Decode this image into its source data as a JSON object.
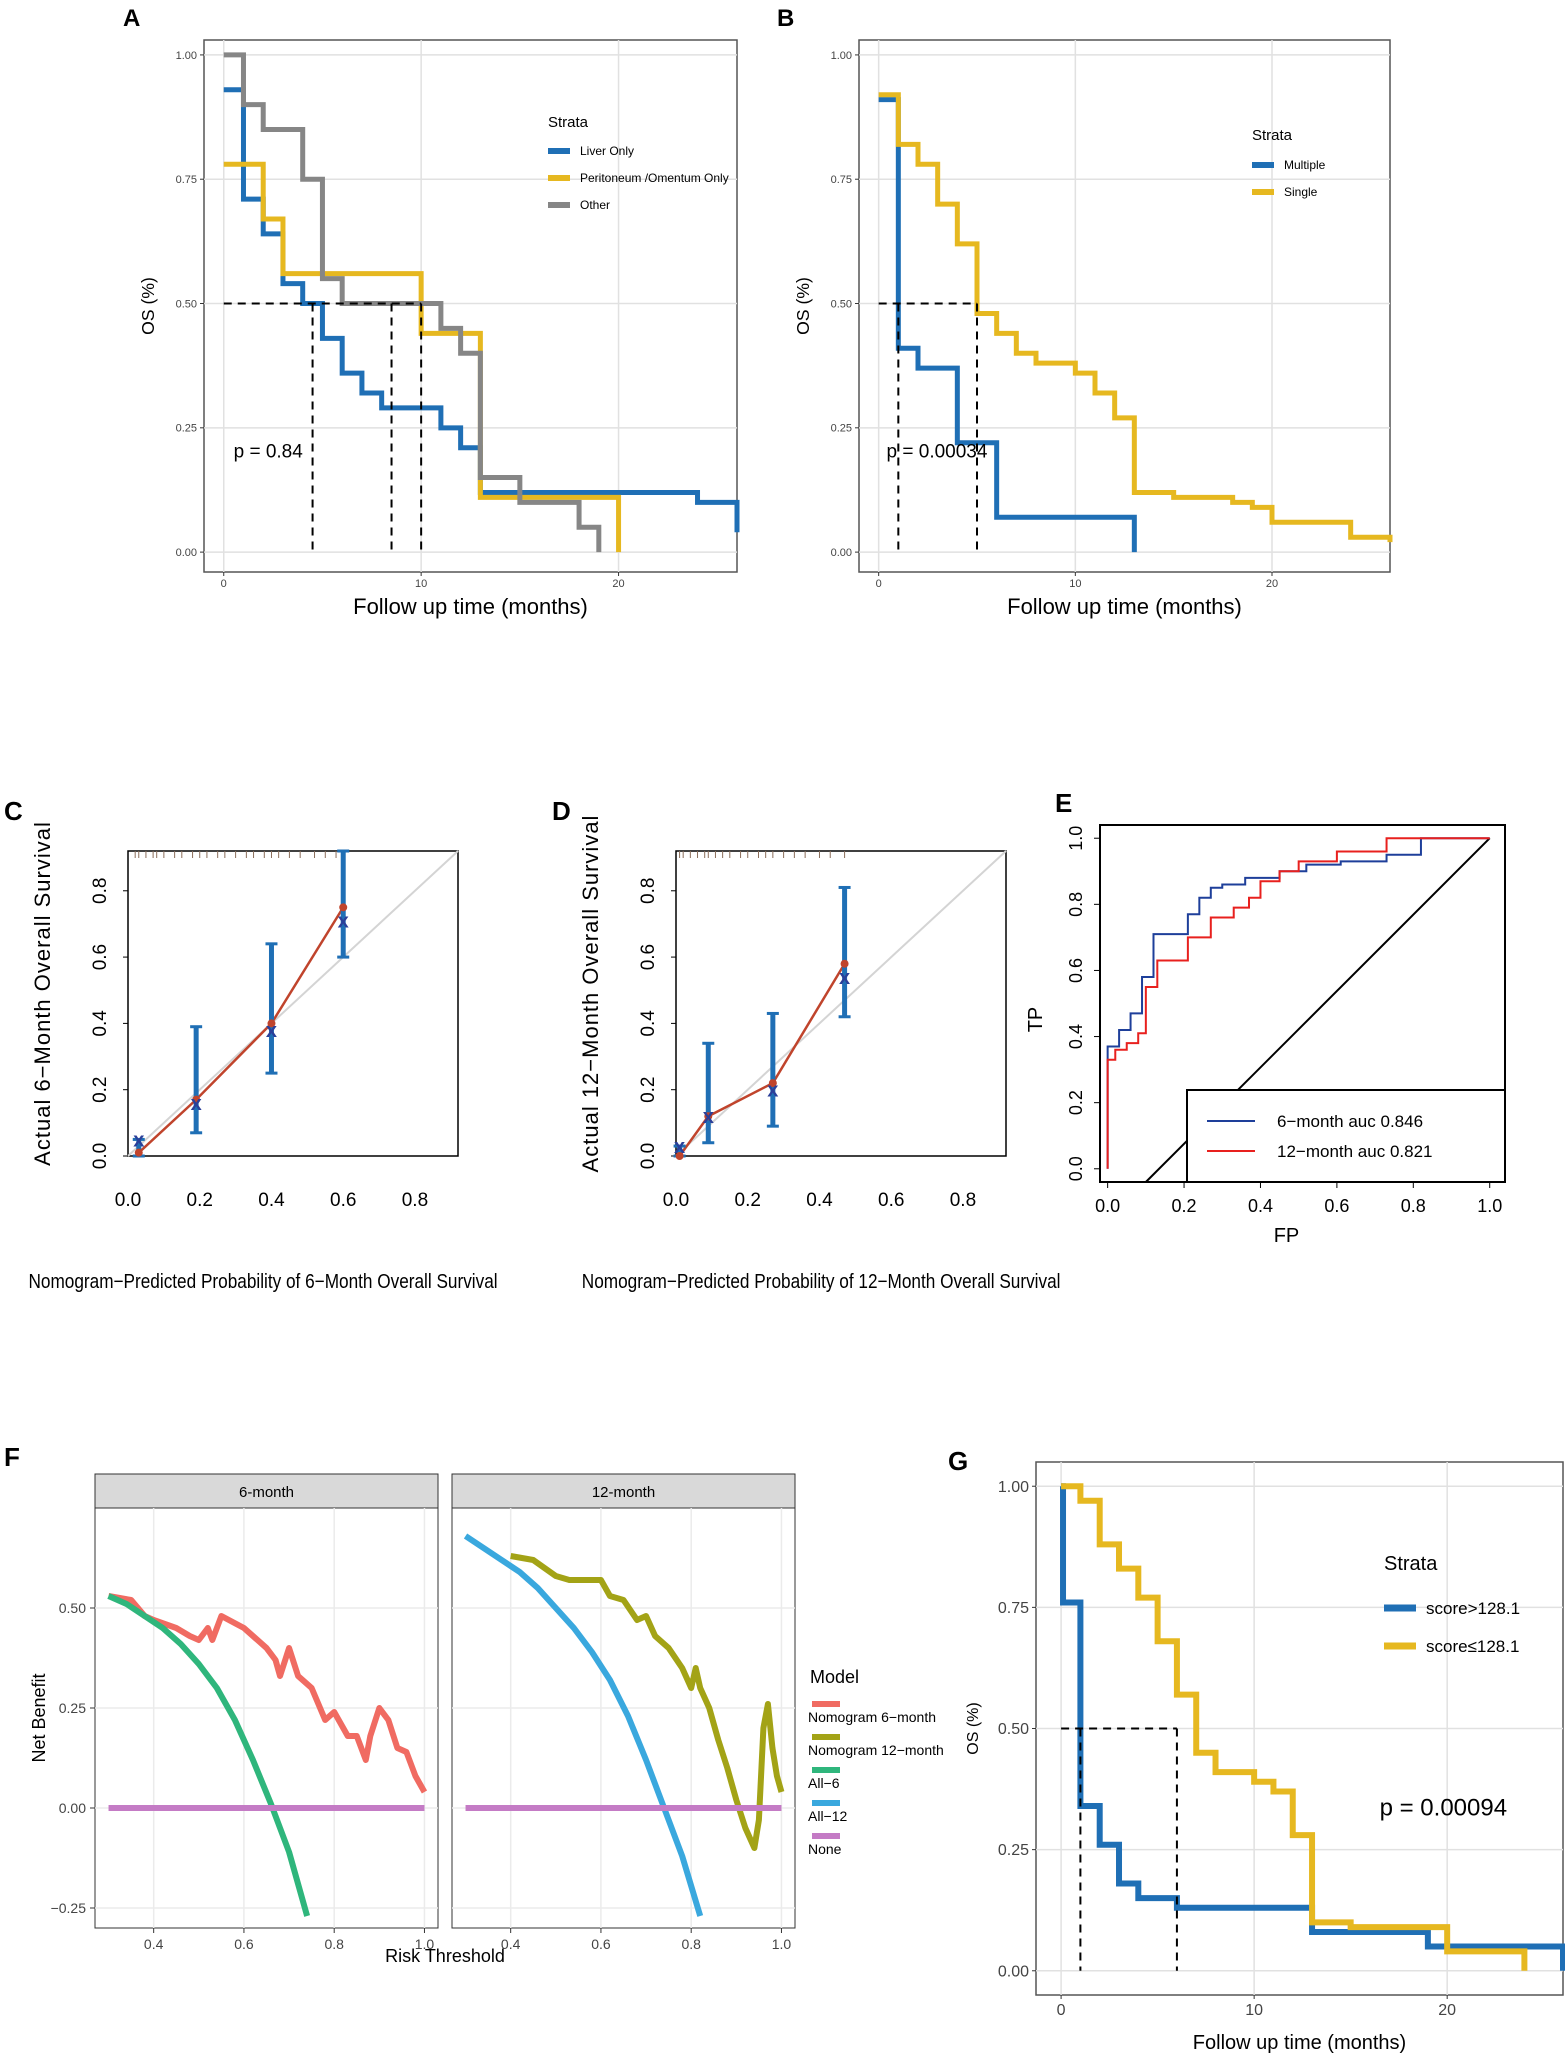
{
  "colors": {
    "blue": "#1f6fb5",
    "gold": "#e6b820",
    "gray": "#868686",
    "navy": "#1e3f9a",
    "red": "#e8201e",
    "salmon": "#f06b62",
    "olive": "#a3a316",
    "green": "#2fb67c",
    "sky": "#3aa8de",
    "violet": "#c47bc5",
    "calib_err": "#1f6fb5",
    "calib_line": "#c0442c"
  },
  "chart_data": [
    {
      "panel": "A",
      "type": "line",
      "xlabel": "Follow up time (months)",
      "ylabel": "OS (%)",
      "xlim": [
        -1,
        26
      ],
      "ylim": [
        -0.04,
        1.03
      ],
      "x_ticks": [
        0,
        10,
        20
      ],
      "x_tick_labels": [
        "0",
        "10",
        "20"
      ],
      "y_ticks": [
        0,
        0.25,
        0.5,
        0.75,
        1
      ],
      "y_tick_labels": [
        "0.00",
        "0.25",
        "0.50",
        "0.75",
        "1.00"
      ],
      "legend_title": "Strata",
      "legend_position": "top-right",
      "legend": [
        "Liver Only",
        "Peritoneum /Omentum Only",
        "Other"
      ],
      "annotation": "p = 0.84",
      "median_line_y": 0.5,
      "median_x": [
        4.5,
        8.5,
        10
      ],
      "series": [
        {
          "name": "Liver Only",
          "color": "blue",
          "x": [
            0,
            1,
            2,
            3,
            4,
            5,
            6,
            7,
            8,
            11,
            12,
            13,
            20,
            24,
            26
          ],
          "y": [
            0.93,
            0.71,
            0.64,
            0.54,
            0.5,
            0.43,
            0.36,
            0.32,
            0.29,
            0.25,
            0.21,
            0.12,
            0.12,
            0.1,
            0.04
          ]
        },
        {
          "name": "Peritoneum /Omentum Only",
          "color": "gold",
          "x": [
            0,
            2,
            3,
            10,
            13,
            18,
            20
          ],
          "y": [
            0.78,
            0.67,
            0.56,
            0.44,
            0.11,
            0.11,
            0
          ]
        },
        {
          "name": "Other",
          "color": "gray",
          "x": [
            0,
            1,
            2,
            4,
            5,
            6,
            11,
            12,
            13,
            15,
            18,
            19
          ],
          "y": [
            1.0,
            0.9,
            0.85,
            0.75,
            0.55,
            0.5,
            0.45,
            0.4,
            0.15,
            0.1,
            0.05,
            0
          ]
        }
      ]
    },
    {
      "panel": "B",
      "type": "line",
      "xlabel": "Follow up time (months)",
      "ylabel": "OS (%)",
      "xlim": [
        -1,
        26
      ],
      "ylim": [
        -0.04,
        1.03
      ],
      "x_ticks": [
        0,
        10,
        20
      ],
      "x_tick_labels": [
        "0",
        "10",
        "20"
      ],
      "y_ticks": [
        0,
        0.25,
        0.5,
        0.75,
        1
      ],
      "y_tick_labels": [
        "0.00",
        "0.25",
        "0.50",
        "0.75",
        "1.00"
      ],
      "legend_title": "Strata",
      "legend_position": "top-right",
      "legend": [
        "Multiple",
        "Single"
      ],
      "annotation": "p = 0.00034",
      "median_line_y": 0.5,
      "median_x": [
        1,
        5
      ],
      "series": [
        {
          "name": "Multiple",
          "color": "blue",
          "x": [
            0,
            1,
            2,
            4,
            6,
            13
          ],
          "y": [
            0.91,
            0.41,
            0.37,
            0.22,
            0.07,
            0
          ]
        },
        {
          "name": "Single",
          "color": "gold",
          "x": [
            0,
            1,
            2,
            3,
            4,
            5,
            6,
            7,
            8,
            10,
            11,
            12,
            13,
            15,
            18,
            19,
            20,
            22,
            24,
            26
          ],
          "y": [
            0.92,
            0.82,
            0.78,
            0.7,
            0.62,
            0.48,
            0.44,
            0.4,
            0.38,
            0.36,
            0.32,
            0.27,
            0.12,
            0.11,
            0.1,
            0.09,
            0.06,
            0.06,
            0.03,
            0.02
          ]
        }
      ]
    },
    {
      "panel": "C",
      "type": "scatter",
      "xlabel": "Nomogram−Predicted Probability of 6−Month Overall Survival",
      "ylabel": "Actual 6−Month Overall Survival",
      "xlim": [
        0,
        0.92
      ],
      "ylim": [
        0,
        0.92
      ],
      "x_ticks": [
        0,
        0.2,
        0.4,
        0.6,
        0.8
      ],
      "x_tick_labels": [
        "0.0",
        "0.2",
        "0.4",
        "0.6",
        "0.8"
      ],
      "y_ticks": [
        0,
        0.2,
        0.4,
        0.6,
        0.8
      ],
      "y_tick_labels": [
        "0.0",
        "0.2",
        "0.4",
        "0.6",
        "0.8"
      ],
      "points": [
        {
          "x": 0.03,
          "y": 0.01,
          "corrected": 0.05,
          "lo": 0.0,
          "hi": 0.05
        },
        {
          "x": 0.19,
          "y": 0.17,
          "corrected": 0.16,
          "lo": 0.07,
          "hi": 0.39
        },
        {
          "x": 0.4,
          "y": 0.4,
          "corrected": 0.38,
          "lo": 0.25,
          "hi": 0.64
        },
        {
          "x": 0.6,
          "y": 0.75,
          "corrected": 0.71,
          "lo": 0.6,
          "hi": 0.92
        }
      ],
      "rug": [
        0.02,
        0.03,
        0.05,
        0.07,
        0.08,
        0.1,
        0.13,
        0.15,
        0.18,
        0.2,
        0.22,
        0.25,
        0.27,
        0.3,
        0.33,
        0.35,
        0.38,
        0.4,
        0.42,
        0.45,
        0.48,
        0.52,
        0.55,
        0.58,
        0.6
      ]
    },
    {
      "panel": "D",
      "type": "scatter",
      "xlabel": "Nomogram−Predicted Probability of 12−Month Overall Survival",
      "ylabel": "Actual 12−Month Overall Survival",
      "xlim": [
        0,
        0.92
      ],
      "ylim": [
        0,
        0.92
      ],
      "x_ticks": [
        0,
        0.2,
        0.4,
        0.6,
        0.8
      ],
      "x_tick_labels": [
        "0.0",
        "0.2",
        "0.4",
        "0.6",
        "0.8"
      ],
      "y_ticks": [
        0,
        0.2,
        0.4,
        0.6,
        0.8
      ],
      "y_tick_labels": [
        "0.0",
        "0.2",
        "0.4",
        "0.6",
        "0.8"
      ],
      "points": [
        {
          "x": 0.01,
          "y": 0.0,
          "corrected": 0.03,
          "lo": 0.0,
          "hi": 0.03
        },
        {
          "x": 0.09,
          "y": 0.12,
          "corrected": 0.12,
          "lo": 0.04,
          "hi": 0.34
        },
        {
          "x": 0.27,
          "y": 0.22,
          "corrected": 0.2,
          "lo": 0.09,
          "hi": 0.43
        },
        {
          "x": 0.47,
          "y": 0.58,
          "corrected": 0.54,
          "lo": 0.42,
          "hi": 0.81
        }
      ],
      "rug": [
        0.01,
        0.02,
        0.04,
        0.06,
        0.08,
        0.09,
        0.11,
        0.13,
        0.15,
        0.18,
        0.2,
        0.23,
        0.25,
        0.27,
        0.3,
        0.33,
        0.36,
        0.4,
        0.43,
        0.47
      ]
    },
    {
      "panel": "E",
      "type": "line",
      "xlabel": "FP",
      "ylabel": "TP",
      "xlim": [
        -0.02,
        1.04
      ],
      "ylim": [
        -0.04,
        1.04
      ],
      "x_ticks": [
        0,
        0.2,
        0.4,
        0.6,
        0.8,
        1.0
      ],
      "x_tick_labels": [
        "0.0",
        "0.2",
        "0.4",
        "0.6",
        "0.8",
        "1.0"
      ],
      "y_ticks": [
        0,
        0.2,
        0.4,
        0.6,
        0.8,
        1.0
      ],
      "y_tick_labels": [
        "0.0",
        "0.2",
        "0.4",
        "0.6",
        "0.8",
        "1.0"
      ],
      "legend_position": "bottom-right",
      "legend": [
        "6−month auc 0.846",
        "12−month auc 0.821"
      ],
      "series": [
        {
          "name": "6−month auc 0.846",
          "color": "navy",
          "x": [
            0,
            0,
            0.03,
            0.03,
            0.06,
            0.06,
            0.09,
            0.09,
            0.12,
            0.12,
            0.15,
            0.15,
            0.21,
            0.21,
            0.24,
            0.24,
            0.27,
            0.27,
            0.3,
            0.3,
            0.36,
            0.36,
            0.45,
            0.45,
            0.52,
            0.52,
            0.61,
            0.61,
            0.73,
            0.73,
            0.82,
            0.82,
            1.0
          ],
          "y": [
            0,
            0.37,
            0.37,
            0.42,
            0.42,
            0.47,
            0.47,
            0.58,
            0.58,
            0.71,
            0.71,
            0.71,
            0.71,
            0.77,
            0.77,
            0.82,
            0.82,
            0.85,
            0.85,
            0.86,
            0.86,
            0.88,
            0.88,
            0.9,
            0.9,
            0.92,
            0.92,
            0.93,
            0.93,
            0.95,
            0.95,
            1.0,
            1.0
          ]
        },
        {
          "name": "12−month auc 0.821",
          "color": "red",
          "x": [
            0,
            0,
            0.02,
            0.02,
            0.05,
            0.05,
            0.08,
            0.08,
            0.1,
            0.1,
            0.13,
            0.13,
            0.21,
            0.21,
            0.27,
            0.27,
            0.33,
            0.33,
            0.37,
            0.37,
            0.4,
            0.4,
            0.45,
            0.45,
            0.5,
            0.5,
            0.6,
            0.6,
            0.73,
            0.73,
            1.0
          ],
          "y": [
            0,
            0.33,
            0.33,
            0.36,
            0.36,
            0.38,
            0.38,
            0.41,
            0.41,
            0.55,
            0.55,
            0.63,
            0.63,
            0.7,
            0.7,
            0.76,
            0.76,
            0.79,
            0.79,
            0.82,
            0.82,
            0.87,
            0.87,
            0.9,
            0.9,
            0.93,
            0.93,
            0.96,
            0.96,
            1.0,
            1.0
          ]
        }
      ]
    },
    {
      "panel": "F",
      "type": "line",
      "xlabel": "Risk Threshold",
      "ylabel": "Net Benefit",
      "xlim": [
        0.27,
        1.03
      ],
      "ylim": [
        -0.3,
        0.75
      ],
      "x_ticks": [
        0.4,
        0.6,
        0.8,
        1.0
      ],
      "x_tick_labels": [
        "0.4",
        "0.6",
        "0.8",
        "1.0"
      ],
      "y_ticks": [
        -0.25,
        0,
        0.25,
        0.5
      ],
      "y_tick_labels": [
        "−0.25",
        "0.00",
        "0.25",
        "0.50"
      ],
      "facets": [
        "6-month",
        "12-month"
      ],
      "legend_title": "Model",
      "legend_position": "right",
      "legend": [
        "Nomogram 6−month",
        "Nomogram 12−month",
        "All−6",
        "All−12",
        "None"
      ],
      "series": [
        {
          "name": "Nomogram 6−month",
          "facet": 0,
          "color": "salmon",
          "x": [
            0.3,
            0.35,
            0.38,
            0.4,
            0.45,
            0.48,
            0.5,
            0.52,
            0.53,
            0.55,
            0.6,
            0.65,
            0.67,
            0.68,
            0.7,
            0.72,
            0.75,
            0.78,
            0.8,
            0.83,
            0.85,
            0.87,
            0.88,
            0.9,
            0.92,
            0.94,
            0.96,
            0.98,
            1.0
          ],
          "y": [
            0.53,
            0.52,
            0.48,
            0.47,
            0.45,
            0.43,
            0.42,
            0.45,
            0.42,
            0.48,
            0.45,
            0.4,
            0.37,
            0.33,
            0.4,
            0.33,
            0.3,
            0.22,
            0.24,
            0.18,
            0.18,
            0.12,
            0.18,
            0.25,
            0.22,
            0.15,
            0.14,
            0.08,
            0.04
          ]
        },
        {
          "name": "Nomogram 12−month",
          "facet": 1,
          "color": "olive",
          "x": [
            0.4,
            0.45,
            0.5,
            0.53,
            0.55,
            0.6,
            0.62,
            0.65,
            0.68,
            0.7,
            0.72,
            0.75,
            0.78,
            0.8,
            0.81,
            0.82,
            0.84,
            0.86,
            0.88,
            0.9,
            0.92,
            0.94,
            0.95,
            0.96,
            0.97,
            0.98,
            0.99,
            1.0
          ],
          "y": [
            0.63,
            0.62,
            0.58,
            0.57,
            0.57,
            0.57,
            0.53,
            0.52,
            0.47,
            0.48,
            0.43,
            0.4,
            0.35,
            0.3,
            0.35,
            0.3,
            0.25,
            0.17,
            0.1,
            0.02,
            -0.05,
            -0.1,
            -0.03,
            0.2,
            0.26,
            0.15,
            0.08,
            0.04
          ]
        },
        {
          "name": "All−6",
          "facet": 0,
          "color": "green",
          "x": [
            0.3,
            0.34,
            0.38,
            0.42,
            0.46,
            0.5,
            0.54,
            0.58,
            0.62,
            0.66,
            0.7,
            0.74
          ],
          "y": [
            0.53,
            0.51,
            0.48,
            0.45,
            0.41,
            0.36,
            0.3,
            0.22,
            0.12,
            0.01,
            -0.11,
            -0.27
          ]
        },
        {
          "name": "All−12",
          "facet": 1,
          "color": "sky",
          "x": [
            0.3,
            0.34,
            0.38,
            0.42,
            0.46,
            0.5,
            0.54,
            0.58,
            0.62,
            0.66,
            0.7,
            0.74,
            0.78,
            0.82
          ],
          "y": [
            0.68,
            0.65,
            0.62,
            0.59,
            0.55,
            0.5,
            0.45,
            0.39,
            0.32,
            0.23,
            0.12,
            0.0,
            -0.12,
            -0.27
          ]
        },
        {
          "name": "None",
          "facet": 0,
          "color": "violet",
          "x": [
            0.3,
            1.0
          ],
          "y": [
            0,
            0
          ]
        },
        {
          "name": "None",
          "facet": 1,
          "color": "violet",
          "x": [
            0.3,
            1.0
          ],
          "y": [
            0,
            0
          ]
        }
      ]
    },
    {
      "panel": "G",
      "type": "line",
      "xlabel": "Follow up time (months)",
      "ylabel": "OS (%)",
      "xlim": [
        -1.3,
        26
      ],
      "ylim": [
        -0.05,
        1.05
      ],
      "x_ticks": [
        0,
        10,
        20
      ],
      "x_tick_labels": [
        "0",
        "10",
        "20"
      ],
      "y_ticks": [
        0,
        0.25,
        0.5,
        0.75,
        1
      ],
      "y_tick_labels": [
        "0.00",
        "0.25",
        "0.50",
        "0.75",
        "1.00"
      ],
      "legend_title": "Strata",
      "legend_position": "right",
      "legend": [
        "score>128.1",
        "score≤128.1"
      ],
      "annotation": "p = 0.00094",
      "median_line_y": 0.5,
      "median_x": [
        1,
        6
      ],
      "series": [
        {
          "name": "score>128.1",
          "color": "blue",
          "x": [
            0,
            0.1,
            1,
            2,
            3,
            4,
            6,
            13,
            19,
            26
          ],
          "y": [
            1.0,
            0.76,
            0.34,
            0.26,
            0.18,
            0.15,
            0.13,
            0.08,
            0.05,
            0
          ]
        },
        {
          "name": "score≤128.1",
          "color": "gold",
          "x": [
            0,
            1,
            2,
            3,
            4,
            5,
            6,
            7,
            8,
            10,
            11,
            12,
            13,
            15,
            20,
            24
          ],
          "y": [
            1.0,
            0.97,
            0.88,
            0.83,
            0.77,
            0.68,
            0.57,
            0.45,
            0.41,
            0.39,
            0.37,
            0.28,
            0.1,
            0.09,
            0.04,
            0
          ]
        }
      ]
    }
  ]
}
